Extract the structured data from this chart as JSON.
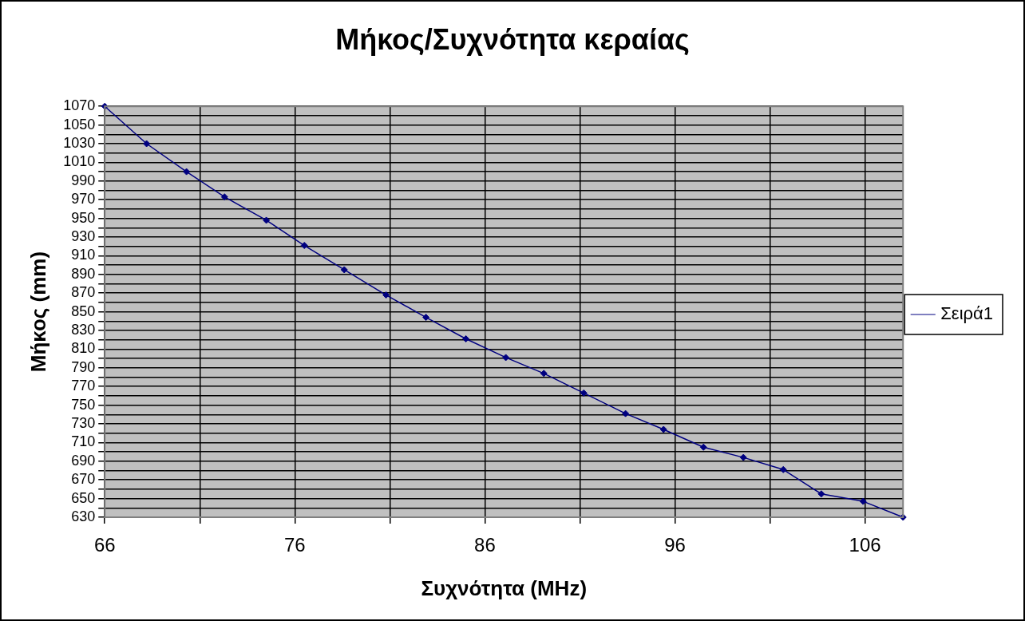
{
  "chart_data": {
    "type": "line",
    "title": "Μήκος/Συχνότητα κεραίας",
    "xlabel": "Συχνότητα (MHz)",
    "ylabel": "Μήκος (mm)",
    "series": [
      {
        "name": "Σειρά1",
        "color": "#000080",
        "x": [
          66,
          68.2,
          70.3,
          72.3,
          74.5,
          76.5,
          78.6,
          80.8,
          82.9,
          85.0,
          87.1,
          89.1,
          91.2,
          93.4,
          95.4,
          97.5,
          99.6,
          101.7,
          103.7,
          105.9,
          108
        ],
        "values": [
          1070,
          1030,
          1000,
          973,
          948,
          921,
          895,
          868,
          844,
          821,
          801,
          784,
          763,
          741,
          724,
          705,
          694,
          681,
          655,
          647,
          630
        ]
      }
    ],
    "xlim": [
      66,
      108
    ],
    "xticks": [
      66,
      {
        "value": 71,
        "label": null
      },
      76,
      {
        "value": 81,
        "label": null
      },
      86,
      {
        "value": 91,
        "label": null
      },
      96,
      {
        "value": 101,
        "label": null
      },
      106
    ],
    "ylim": [
      630,
      1070
    ],
    "yticks": [
      630,
      {
        "value": 640,
        "label": null
      },
      650,
      {
        "value": 660,
        "label": null
      },
      670,
      {
        "value": 680,
        "label": null
      },
      690,
      {
        "value": 700,
        "label": null
      },
      710,
      {
        "value": 720,
        "label": null
      },
      730,
      {
        "value": 740,
        "label": null
      },
      750,
      {
        "value": 760,
        "label": null
      },
      770,
      {
        "value": 780,
        "label": null
      },
      790,
      {
        "value": 800,
        "label": null
      },
      810,
      {
        "value": 820,
        "label": null
      },
      830,
      {
        "value": 840,
        "label": null
      },
      850,
      {
        "value": 860,
        "label": null
      },
      870,
      {
        "value": 880,
        "label": null
      },
      890,
      {
        "value": 900,
        "label": null
      },
      910,
      {
        "value": 920,
        "label": null
      },
      930,
      {
        "value": 940,
        "label": null
      },
      950,
      {
        "value": 960,
        "label": null
      },
      970,
      {
        "value": 980,
        "label": null
      },
      990,
      {
        "value": 1000,
        "label": null
      },
      1010,
      {
        "value": 1020,
        "label": null
      },
      1030,
      {
        "value": 1040,
        "label": null
      },
      1050,
      {
        "value": 1060,
        "label": null
      },
      1070
    ],
    "grid": true,
    "legend": "right",
    "marker": "diamond",
    "line_style": "solid"
  }
}
